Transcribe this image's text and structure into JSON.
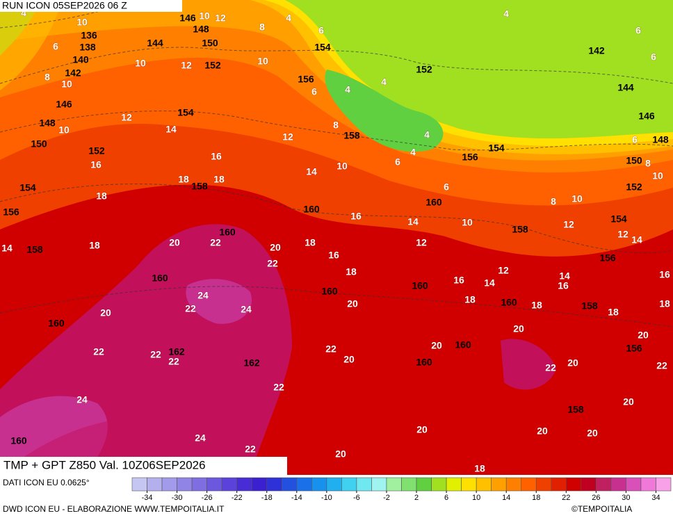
{
  "header": {
    "run": "RUN ICON 05SEP2026 06 Z",
    "title": "TMP + GPT Z850 Val. 10Z06SEP2026",
    "source": "DATI ICON EU 0.0625°",
    "credit": "DWD ICON EU - ELABORAZIONE WWW.TEMPOITALIA.IT",
    "copyright": "©TEMPOITALIA"
  },
  "map": {
    "temperature_labels": [
      4,
      10,
      6,
      8,
      10,
      10,
      12,
      10,
      12,
      8,
      10,
      4,
      4,
      6,
      6,
      6,
      4,
      4,
      6,
      12,
      14,
      10,
      8,
      4,
      4,
      6,
      12,
      14,
      10,
      16,
      16,
      18,
      18,
      18,
      16,
      14,
      10,
      12,
      8,
      10,
      12,
      12,
      14,
      10,
      8,
      6,
      6,
      14,
      18,
      20,
      22,
      20,
      22,
      18,
      16,
      18,
      12,
      14,
      16,
      18,
      16,
      14,
      18,
      18,
      16,
      18,
      20,
      24,
      22,
      24,
      20,
      20,
      20,
      22,
      20,
      22,
      22,
      22,
      22,
      20,
      20,
      22,
      24,
      22,
      20,
      20,
      20,
      20,
      24,
      22,
      20,
      18
    ],
    "geopotential_labels": [
      136,
      138,
      140,
      142,
      146,
      148,
      150,
      144,
      152,
      146,
      148,
      150,
      152,
      154,
      154,
      156,
      158,
      158,
      160,
      160,
      160,
      160,
      160,
      160,
      160,
      160,
      160,
      160,
      160,
      162,
      162,
      158,
      158,
      158,
      156,
      156,
      154,
      152,
      150,
      148,
      146,
      144,
      142,
      152,
      154,
      156,
      158,
      156,
      154
    ]
  },
  "colorbar": {
    "range": [
      -36,
      36
    ],
    "ticks": [
      -34,
      -30,
      -26,
      -22,
      -18,
      -14,
      -10,
      -6,
      -2,
      2,
      6,
      10,
      14,
      18,
      22,
      26,
      30,
      34
    ],
    "colors": [
      "#c6c6f2",
      "#b4b0ee",
      "#a29aea",
      "#9084e6",
      "#7e6ee2",
      "#6c58de",
      "#5a42da",
      "#482cd6",
      "#3a20d0",
      "#2e30d8",
      "#2450e0",
      "#1a70e8",
      "#1890ee",
      "#20b0f0",
      "#40d0f0",
      "#70e8f0",
      "#a0f4f0",
      "#a0f0a0",
      "#80e070",
      "#60d040",
      "#a0e020",
      "#e0f000",
      "#ffe000",
      "#ffc000",
      "#ffa000",
      "#ff8000",
      "#ff6000",
      "#f04000",
      "#e02000",
      "#d00000",
      "#c00020",
      "#c02060",
      "#c83090",
      "#d850b8",
      "#f078d8",
      "#f8a0e8"
    ]
  }
}
